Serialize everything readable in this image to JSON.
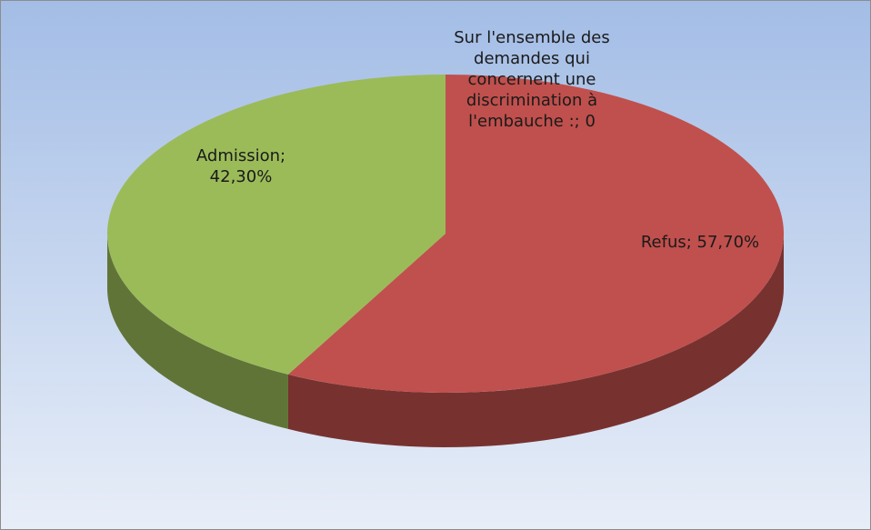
{
  "chart_data": {
    "type": "pie3d",
    "categories": [
      "Sur l'ensemble des demandes qui concernent une discrimination à l'embauche :",
      "Refus",
      "Admission"
    ],
    "values": [
      0,
      57.7,
      42.3
    ],
    "value_labels": [
      "0",
      "57,70%",
      "42,30%"
    ],
    "label_separator": "; ",
    "colors": [
      "#4f81bd",
      "#c0504d",
      "#9bbb59"
    ]
  }
}
